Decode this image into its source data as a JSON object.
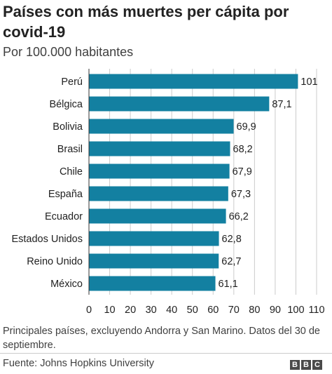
{
  "chart_data": {
    "type": "bar",
    "orientation": "horizontal",
    "title": "Países con más muertes per cápita por covid-19",
    "subtitle": "Por 100.000 habitantes",
    "categories": [
      "Perú",
      "Bélgica",
      "Bolivia",
      "Brasil",
      "Chile",
      "España",
      "Ecuador",
      "Estados Unidos",
      "Reino Unido",
      "México"
    ],
    "values": [
      101,
      87.1,
      69.9,
      68.2,
      67.9,
      67.3,
      66.2,
      62.8,
      62.7,
      61.1
    ],
    "value_labels": [
      "101",
      "87,1",
      "69,9",
      "68,2",
      "67,9",
      "67,3",
      "66,2",
      "62,8",
      "62,7",
      "61,1"
    ],
    "xlim": [
      0,
      110
    ],
    "xticks": [
      0,
      10,
      20,
      30,
      40,
      50,
      60,
      70,
      80,
      90,
      100,
      110
    ],
    "grid": "vertical",
    "bar_color": "#1380A1",
    "grid_color": "#cbcbcb"
  },
  "note": "Principales países, excluyendo Andorra y San Marino. Datos del 30 de septiembre.",
  "source": "Fuente: Johns Hopkins University",
  "logo": [
    "B",
    "B",
    "C"
  ]
}
